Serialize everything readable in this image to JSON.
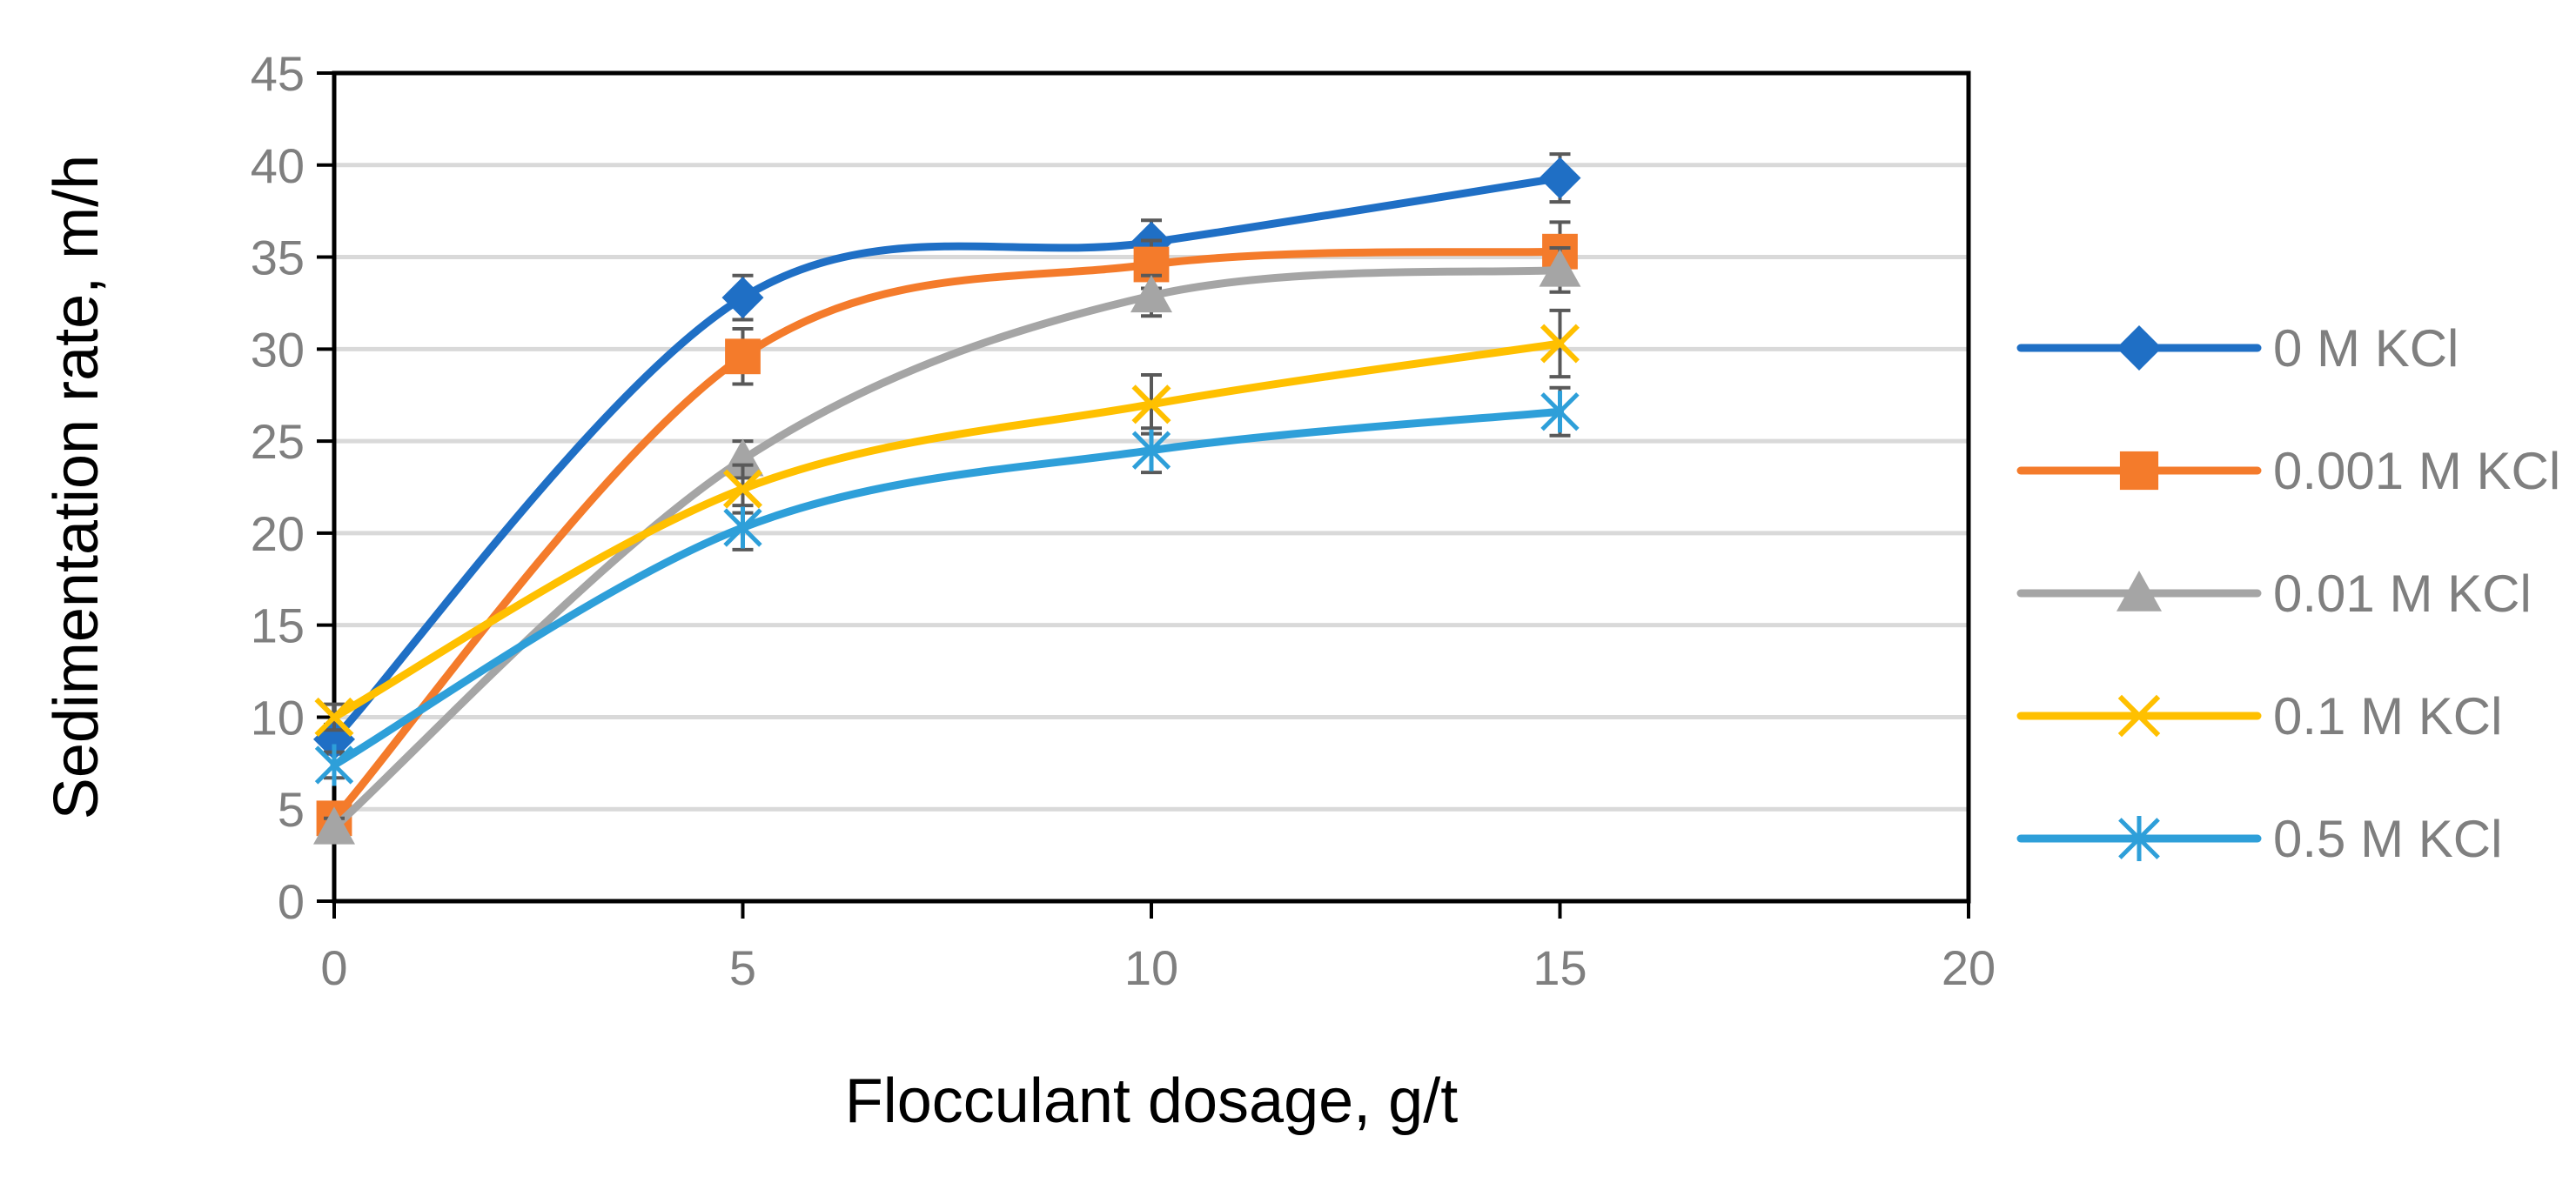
{
  "chart_data": {
    "type": "line",
    "title": "",
    "xlabel": "Flocculant dosage, g/t",
    "ylabel": "Sedimentation rate, m/h",
    "xlim": [
      0,
      20
    ],
    "ylim": [
      0,
      45
    ],
    "x_ticks": [
      "0",
      "5",
      "10",
      "15",
      "20"
    ],
    "y_ticks": [
      "0",
      "5",
      "10",
      "15",
      "20",
      "25",
      "30",
      "35",
      "40",
      "45"
    ],
    "grid": "horizontal",
    "legend_position": "right",
    "x": [
      0,
      5,
      10,
      15
    ],
    "series": [
      {
        "name": "0 M KCl",
        "color": "#1f6fc5",
        "marker": "diamond",
        "values": [
          8.8,
          32.8,
          35.8,
          39.3
        ],
        "errors": [
          0.8,
          1.2,
          1.2,
          1.3
        ]
      },
      {
        "name": "0.001 M KCl",
        "color": "#f47b2b",
        "marker": "square",
        "values": [
          4.5,
          29.6,
          34.6,
          35.3
        ],
        "errors": [
          0.6,
          1.5,
          1.3,
          1.6
        ]
      },
      {
        "name": "0.01 M KCl",
        "color": "#a5a5a5",
        "marker": "triangle",
        "values": [
          4.0,
          24.0,
          32.9,
          34.3
        ],
        "errors": [
          0.5,
          1.0,
          1.1,
          1.2
        ]
      },
      {
        "name": "0.1 M KCl",
        "color": "#ffc000",
        "marker": "x",
        "values": [
          10.0,
          22.4,
          27.0,
          30.3
        ],
        "errors": [
          0.7,
          1.3,
          1.6,
          1.8
        ]
      },
      {
        "name": "0.5 M KCl",
        "color": "#2e9fd9",
        "marker": "star",
        "values": [
          7.4,
          20.3,
          24.5,
          26.6
        ],
        "errors": [
          0.7,
          1.2,
          1.2,
          1.3
        ]
      }
    ]
  }
}
